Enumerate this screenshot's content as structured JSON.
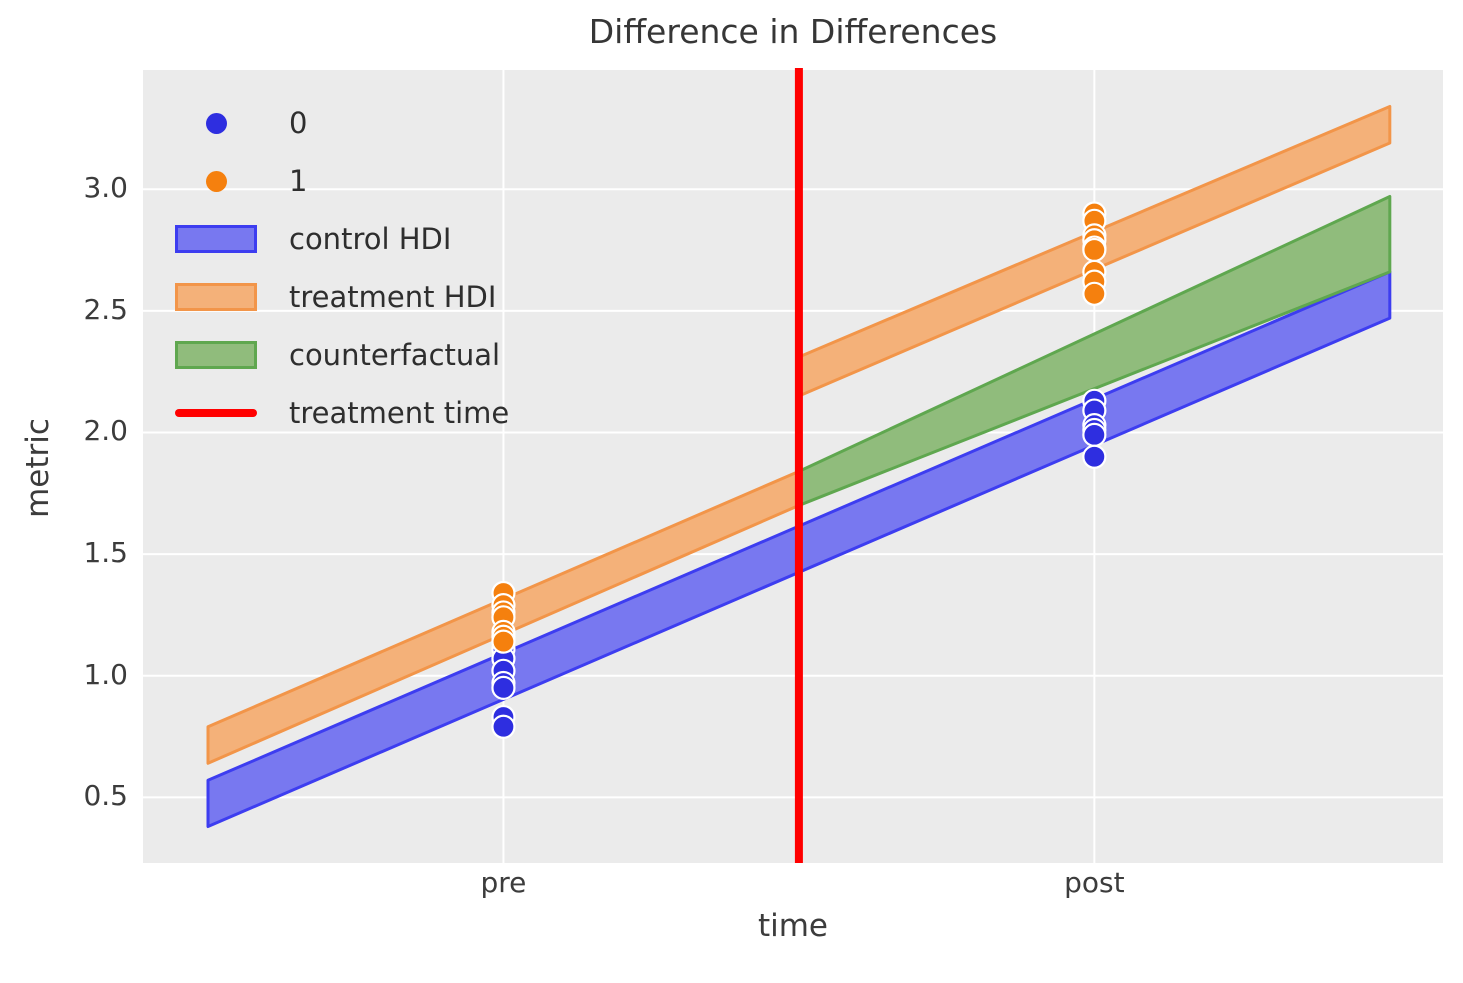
{
  "chart_data": {
    "type": "area",
    "title": "Difference in Differences",
    "xlabel": "time",
    "ylabel": "metric",
    "xlim": [
      -0.61,
      1.59
    ],
    "ylim": [
      0.23,
      3.49
    ],
    "grid": true,
    "background_color": "#ebebeb",
    "gridline_color": "#ffffff",
    "x_ticks": [
      {
        "value": 0,
        "label": "pre"
      },
      {
        "value": 1,
        "label": "post"
      }
    ],
    "y_ticks": [
      {
        "value": 0.5,
        "label": "0.5"
      },
      {
        "value": 1.0,
        "label": "1.0"
      },
      {
        "value": 1.5,
        "label": "1.5"
      },
      {
        "value": 2.0,
        "label": "2.0"
      },
      {
        "value": 2.5,
        "label": "2.5"
      },
      {
        "value": 3.0,
        "label": "3.0"
      }
    ],
    "bands": [
      {
        "name": "control HDI",
        "fill": "#7878f0",
        "edge": "#3d3df0",
        "segments": [
          {
            "x": [
              -0.5,
              1.5
            ],
            "top": [
              0.57,
              2.66
            ],
            "bottom": [
              0.38,
              2.47
            ]
          }
        ]
      },
      {
        "name": "treatment HDI",
        "fill": "#f4b179",
        "edge": "#f29549",
        "segments": [
          {
            "x": [
              -0.5,
              0.5
            ],
            "top": [
              0.79,
              1.84
            ],
            "bottom": [
              0.64,
              1.7
            ]
          },
          {
            "x": [
              0.5,
              1.5
            ],
            "top": [
              2.31,
              3.34
            ],
            "bottom": [
              2.15,
              3.19
            ]
          }
        ]
      },
      {
        "name": "counterfactual",
        "fill": "#90bc7c",
        "edge": "#5fa74f",
        "segments": [
          {
            "x": [
              0.5,
              1.5
            ],
            "top": [
              1.84,
              2.97
            ],
            "bottom": [
              1.7,
              2.66
            ]
          }
        ]
      }
    ],
    "vline": {
      "name": "treatment time",
      "x": 0.5,
      "color": "#ff0000",
      "stroke_width": 8
    },
    "scatter": [
      {
        "name": "0",
        "color": "#2e2ee0",
        "points": [
          [
            0,
            1.11
          ],
          [
            0,
            1.07
          ],
          [
            0,
            1.02
          ],
          [
            0,
            0.97
          ],
          [
            0,
            0.95
          ],
          [
            0,
            0.83
          ],
          [
            0,
            0.79
          ],
          [
            1,
            2.13
          ],
          [
            1,
            2.09
          ],
          [
            1,
            2.03
          ],
          [
            1,
            2.01
          ],
          [
            1,
            1.99
          ],
          [
            1,
            1.9
          ]
        ]
      },
      {
        "name": "1",
        "color": "#f5800e",
        "points": [
          [
            0,
            1.34
          ],
          [
            0,
            1.29
          ],
          [
            0,
            1.26
          ],
          [
            0,
            1.24
          ],
          [
            0,
            1.18
          ],
          [
            0,
            1.16
          ],
          [
            0,
            1.14
          ],
          [
            1,
            2.9
          ],
          [
            1,
            2.87
          ],
          [
            1,
            2.81
          ],
          [
            1,
            2.79
          ],
          [
            1,
            2.76
          ],
          [
            1,
            2.75
          ],
          [
            1,
            2.66
          ],
          [
            1,
            2.62
          ],
          [
            1,
            2.57
          ]
        ]
      }
    ],
    "legend": [
      {
        "marker": "dot",
        "color": "#2e2ee0",
        "label": "0"
      },
      {
        "marker": "dot",
        "color": "#f5800e",
        "label": "1"
      },
      {
        "marker": "patch",
        "fill": "#7878f0",
        "edge": "#3d3df0",
        "label": "control HDI"
      },
      {
        "marker": "patch",
        "fill": "#f4b179",
        "edge": "#f29549",
        "label": "treatment HDI"
      },
      {
        "marker": "patch",
        "fill": "#90bc7c",
        "edge": "#5fa74f",
        "label": "counterfactual"
      },
      {
        "marker": "line",
        "color": "#ff0000",
        "label": "treatment time"
      }
    ]
  }
}
